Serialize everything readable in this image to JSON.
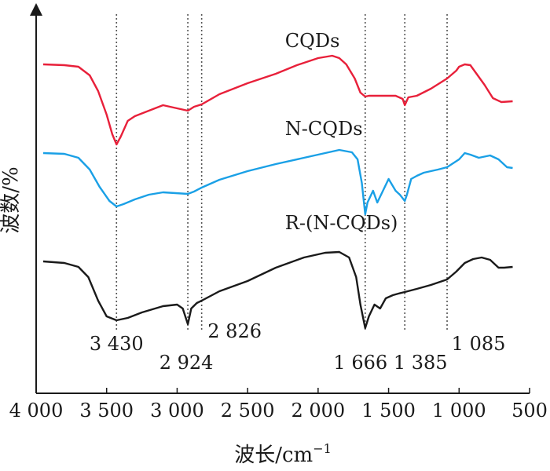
{
  "chart_data": {
    "type": "line",
    "title": "",
    "xlabel": "波长/cm",
    "xlabel_sup": "−1",
    "ylabel": "波数/%",
    "xlim": [
      4000,
      500
    ],
    "x_reversed": true,
    "y_ticks_shown": false,
    "grid": false,
    "legend": "none",
    "x_ticks": [
      {
        "value": 4000,
        "label": "4 000"
      },
      {
        "value": 3500,
        "label": "3 500"
      },
      {
        "value": 3000,
        "label": "3 000"
      },
      {
        "value": 2500,
        "label": "2 500"
      },
      {
        "value": 2000,
        "label": "2 000"
      },
      {
        "value": 1500,
        "label": "1 500"
      },
      {
        "value": 1000,
        "label": "1 000"
      },
      {
        "value": 500,
        "label": "500"
      }
    ],
    "peak_markers": [
      {
        "x": 3430,
        "label": "3 430"
      },
      {
        "x": 2924,
        "label": "2 924"
      },
      {
        "x": 2826,
        "label": "2 826"
      },
      {
        "x": 1666,
        "label": "1 666"
      },
      {
        "x": 1385,
        "label": "1 385"
      },
      {
        "x": 1085,
        "label": "1 085"
      }
    ],
    "series": [
      {
        "name": "CQDs",
        "color": "#e8203a",
        "points": [
          [
            3950,
            44
          ],
          [
            3800,
            45
          ],
          [
            3700,
            47
          ],
          [
            3620,
            58
          ],
          [
            3560,
            78
          ],
          [
            3500,
            108
          ],
          [
            3460,
            133
          ],
          [
            3430,
            146
          ],
          [
            3400,
            136
          ],
          [
            3350,
            116
          ],
          [
            3300,
            110
          ],
          [
            3200,
            103
          ],
          [
            3100,
            96
          ],
          [
            3000,
            100
          ],
          [
            2924,
            103
          ],
          [
            2880,
            98
          ],
          [
            2826,
            95
          ],
          [
            2700,
            82
          ],
          [
            2500,
            68
          ],
          [
            2300,
            56
          ],
          [
            2150,
            45
          ],
          [
            2000,
            36
          ],
          [
            1900,
            33
          ],
          [
            1850,
            36
          ],
          [
            1800,
            44
          ],
          [
            1740,
            62
          ],
          [
            1700,
            80
          ],
          [
            1666,
            85
          ],
          [
            1640,
            84
          ],
          [
            1550,
            84
          ],
          [
            1450,
            84
          ],
          [
            1400,
            88
          ],
          [
            1385,
            96
          ],
          [
            1360,
            86
          ],
          [
            1300,
            84
          ],
          [
            1200,
            75
          ],
          [
            1085,
            62
          ],
          [
            1020,
            52
          ],
          [
            1000,
            47
          ],
          [
            960,
            44
          ],
          [
            920,
            45
          ],
          [
            880,
            55
          ],
          [
            820,
            70
          ],
          [
            760,
            87
          ],
          [
            700,
            92
          ],
          [
            620,
            91
          ]
        ]
      },
      {
        "name": "N-CQDs",
        "color": "#1aa0e6",
        "points": [
          [
            3950,
            157
          ],
          [
            3800,
            158
          ],
          [
            3700,
            163
          ],
          [
            3620,
            178
          ],
          [
            3550,
            200
          ],
          [
            3480,
            218
          ],
          [
            3430,
            225
          ],
          [
            3380,
            222
          ],
          [
            3300,
            216
          ],
          [
            3200,
            210
          ],
          [
            3100,
            207
          ],
          [
            2924,
            209
          ],
          [
            2880,
            206
          ],
          [
            2826,
            201
          ],
          [
            2700,
            191
          ],
          [
            2500,
            180
          ],
          [
            2300,
            171
          ],
          [
            2100,
            163
          ],
          [
            1950,
            157
          ],
          [
            1850,
            153
          ],
          [
            1760,
            156
          ],
          [
            1720,
            165
          ],
          [
            1690,
            195
          ],
          [
            1666,
            235
          ],
          [
            1650,
            220
          ],
          [
            1610,
            205
          ],
          [
            1580,
            220
          ],
          [
            1540,
            205
          ],
          [
            1500,
            190
          ],
          [
            1450,
            205
          ],
          [
            1420,
            210
          ],
          [
            1385,
            218
          ],
          [
            1370,
            210
          ],
          [
            1340,
            190
          ],
          [
            1300,
            186
          ],
          [
            1250,
            182
          ],
          [
            1200,
            180
          ],
          [
            1150,
            178
          ],
          [
            1085,
            175
          ],
          [
            1000,
            165
          ],
          [
            960,
            157
          ],
          [
            920,
            159
          ],
          [
            860,
            163
          ],
          [
            780,
            160
          ],
          [
            720,
            165
          ],
          [
            660,
            175
          ],
          [
            620,
            176
          ]
        ]
      },
      {
        "name": "R-(N-CQDs)",
        "color": "#1a1a1a",
        "points": [
          [
            3950,
            295
          ],
          [
            3800,
            297
          ],
          [
            3700,
            302
          ],
          [
            3630,
            315
          ],
          [
            3560,
            345
          ],
          [
            3500,
            365
          ],
          [
            3430,
            370
          ],
          [
            3350,
            367
          ],
          [
            3250,
            360
          ],
          [
            3100,
            352
          ],
          [
            3000,
            350
          ],
          [
            2960,
            355
          ],
          [
            2924,
            375
          ],
          [
            2900,
            355
          ],
          [
            2860,
            348
          ],
          [
            2826,
            345
          ],
          [
            2700,
            333
          ],
          [
            2500,
            320
          ],
          [
            2300,
            303
          ],
          [
            2100,
            290
          ],
          [
            1950,
            284
          ],
          [
            1850,
            283
          ],
          [
            1780,
            290
          ],
          [
            1730,
            315
          ],
          [
            1700,
            350
          ],
          [
            1666,
            380
          ],
          [
            1640,
            365
          ],
          [
            1600,
            350
          ],
          [
            1560,
            355
          ],
          [
            1520,
            342
          ],
          [
            1470,
            338
          ],
          [
            1430,
            336
          ],
          [
            1385,
            334
          ],
          [
            1300,
            330
          ],
          [
            1200,
            325
          ],
          [
            1085,
            318
          ],
          [
            1020,
            308
          ],
          [
            960,
            297
          ],
          [
            900,
            292
          ],
          [
            840,
            290
          ],
          [
            780,
            293
          ],
          [
            720,
            303
          ],
          [
            680,
            303
          ],
          [
            620,
            302
          ]
        ]
      }
    ],
    "series_label_pos": [
      {
        "x": 1900,
        "y": 28
      },
      {
        "x": 1900,
        "y": 140
      },
      {
        "x": 1900,
        "y": 260
      }
    ]
  }
}
